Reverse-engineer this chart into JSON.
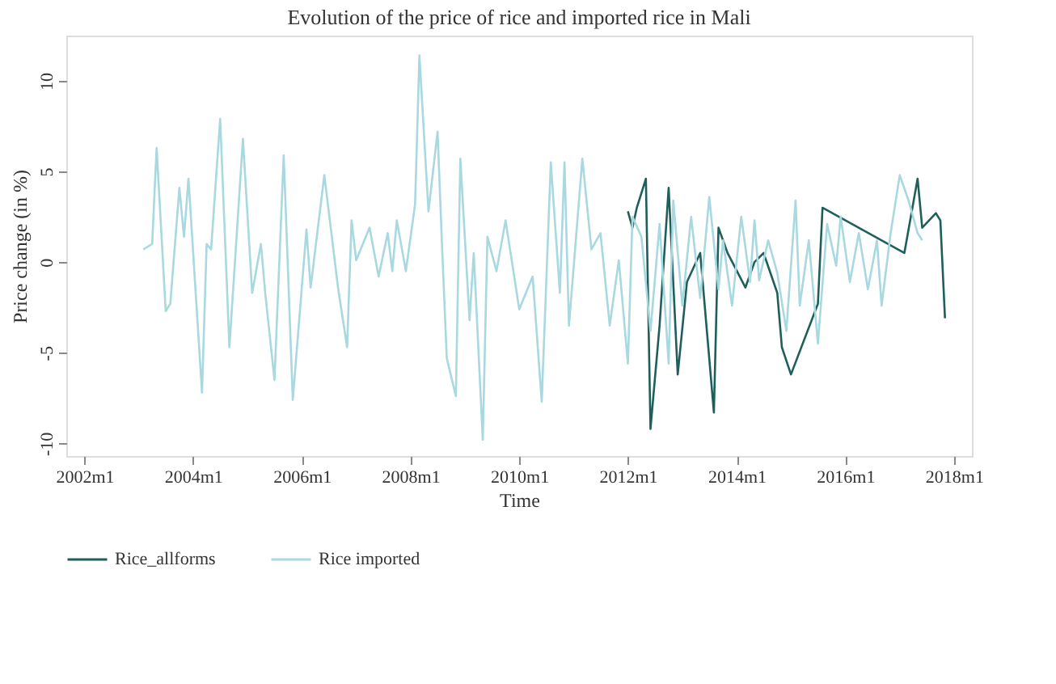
{
  "chart_data": {
    "type": "line",
    "title": "Evolution of the price of rice and imported rice in Mali",
    "xlabel": "Time",
    "ylabel": "Price change (in %)",
    "xlim": [
      "2001-09",
      "2018-05"
    ],
    "ylim": [
      -10.7,
      12.5
    ],
    "xticks": [
      {
        "value": "2002-01",
        "label": "2002m1"
      },
      {
        "value": "2004-01",
        "label": "2004m1"
      },
      {
        "value": "2006-01",
        "label": "2006m1"
      },
      {
        "value": "2008-01",
        "label": "2008m1"
      },
      {
        "value": "2010-01",
        "label": "2010m1"
      },
      {
        "value": "2012-01",
        "label": "2012m1"
      },
      {
        "value": "2014-01",
        "label": "2014m1"
      },
      {
        "value": "2016-01",
        "label": "2016m1"
      },
      {
        "value": "2018-01",
        "label": "2018m1"
      }
    ],
    "yticks": [
      -10,
      -5,
      0,
      5,
      10
    ],
    "grid": false,
    "legend": "bottom",
    "marker": "none",
    "line_style": "solid",
    "series": [
      {
        "name": "Rice_allforms",
        "color": "#1f5f5b",
        "x": [
          "2012-01",
          "2012-02",
          "2012-03",
          "2012-05",
          "2012-06",
          "2012-08",
          "2012-10",
          "2012-12",
          "2013-02",
          "2013-05",
          "2013-08",
          "2013-09",
          "2013-11",
          "2014-03",
          "2014-05",
          "2014-07",
          "2014-10",
          "2014-11",
          "2015-01",
          "2015-07",
          "2015-08",
          "2017-02",
          "2017-05",
          "2017-06",
          "2017-09",
          "2017-10",
          "2017-11"
        ],
        "values": [
          2.8,
          1.9,
          3.0,
          4.6,
          -9.2,
          -3.5,
          4.1,
          -6.2,
          -1.1,
          0.5,
          -8.3,
          1.9,
          0.5,
          -1.4,
          0,
          0.5,
          -1.7,
          -4.7,
          -6.2,
          -2.3,
          3.0,
          0.5,
          4.6,
          1.9,
          2.7,
          2.3,
          -3.1
        ]
      },
      {
        "name": "Rice imported",
        "color": "#a8d8e0",
        "x": [
          "2003-02",
          "2003-04",
          "2003-05",
          "2003-07",
          "2003-08",
          "2003-10",
          "2003-11",
          "2003-12",
          "2004-03",
          "2004-04",
          "2004-05",
          "2004-07",
          "2004-09",
          "2004-12",
          "2005-02",
          "2005-04",
          "2005-05",
          "2005-07",
          "2005-09",
          "2005-11",
          "2006-02",
          "2006-03",
          "2006-06",
          "2006-09",
          "2006-11",
          "2006-12",
          "2007-01",
          "2007-04",
          "2007-06",
          "2007-08",
          "2007-09",
          "2007-10",
          "2007-12",
          "2008-02",
          "2008-03",
          "2008-05",
          "2008-07",
          "2008-08",
          "2008-09",
          "2008-11",
          "2008-12",
          "2009-02",
          "2009-03",
          "2009-05",
          "2009-06",
          "2009-08",
          "2009-10",
          "2010-01",
          "2010-04",
          "2010-06",
          "2010-08",
          "2010-10",
          "2010-11",
          "2010-12",
          "2011-03",
          "2011-05",
          "2011-07",
          "2011-09",
          "2011-11",
          "2012-01",
          "2012-02",
          "2012-04",
          "2012-06",
          "2012-08",
          "2012-10",
          "2012-11",
          "2013-01",
          "2013-03",
          "2013-05",
          "2013-07",
          "2013-09",
          "2013-10",
          "2013-12",
          "2014-02",
          "2014-04",
          "2014-05",
          "2014-06",
          "2014-08",
          "2014-10",
          "2014-12",
          "2015-02",
          "2015-03",
          "2015-05",
          "2015-07",
          "2015-09",
          "2015-11",
          "2015-12",
          "2016-02",
          "2016-04",
          "2016-06",
          "2016-08",
          "2016-09",
          "2016-11",
          "2017-01",
          "2017-03",
          "2017-05",
          "2017-06"
        ],
        "values": [
          0.7,
          1.0,
          6.3,
          -2.7,
          -2.3,
          4.1,
          1.4,
          4.6,
          -7.2,
          1.0,
          0.7,
          7.9,
          -4.7,
          6.8,
          -1.7,
          1.0,
          -1.8,
          -6.5,
          5.9,
          -7.6,
          1.8,
          -1.4,
          4.8,
          -1.4,
          -4.7,
          2.3,
          0.1,
          1.9,
          -0.8,
          1.6,
          -0.5,
          2.3,
          -0.5,
          3.2,
          11.4,
          2.8,
          7.2,
          0.7,
          -5.3,
          -7.4,
          5.7,
          -3.2,
          0.5,
          -9.8,
          1.4,
          -0.5,
          2.3,
          -2.6,
          -0.8,
          -7.7,
          5.5,
          -1.7,
          5.5,
          -3.5,
          5.7,
          0.7,
          1.6,
          -3.5,
          0.1,
          -5.6,
          2.5,
          1.4,
          -3.8,
          2.1,
          -5.6,
          3.4,
          -2.4,
          2.5,
          -2.0,
          3.6,
          -1.5,
          1.2,
          -2.4,
          2.5,
          -1.1,
          2.3,
          -1.0,
          1.2,
          -0.6,
          -3.8,
          3.4,
          -2.4,
          1.2,
          -4.5,
          2.1,
          -0.2,
          2.5,
          -1.1,
          1.6,
          -1.5,
          1.2,
          -2.4,
          1.6,
          4.8,
          3.4,
          1.6,
          1.2
        ]
      }
    ]
  }
}
